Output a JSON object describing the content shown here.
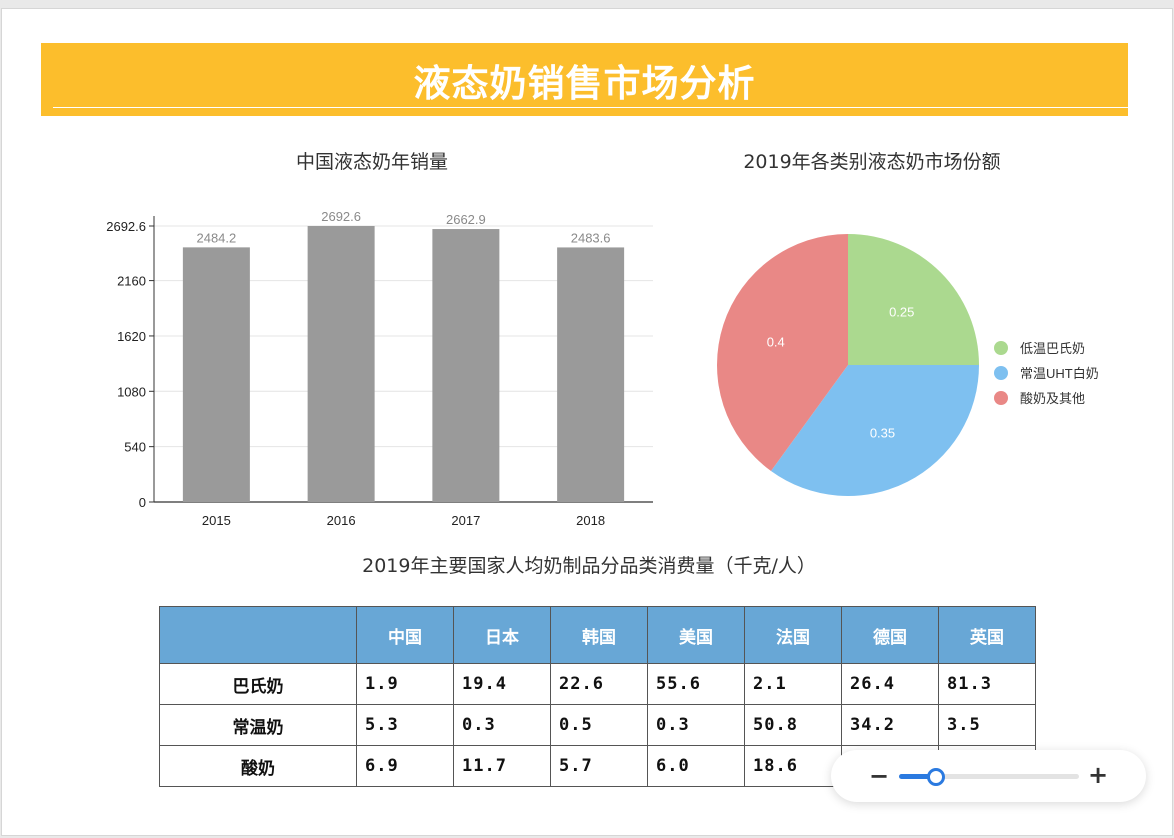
{
  "page": {
    "title": "液态奶销售市场分析"
  },
  "bar_chart_title": "中国液态奶年销量",
  "pie_chart_title": "2019年各类别液态奶市场份额",
  "table_title": "2019年主要国家人均奶制品分品类消费量（千克/人）",
  "chart_data": [
    {
      "type": "bar",
      "title": "中国液态奶年销量",
      "categories": [
        "2015",
        "2016",
        "2017",
        "2018"
      ],
      "values": [
        2484.2,
        2692.6,
        2662.9,
        2483.6
      ],
      "value_labels": [
        "2484.2",
        "2692.6",
        "2662.9",
        "2483.6"
      ],
      "ylim": [
        0,
        2692.6
      ],
      "yticks": [
        "0",
        "540",
        "1080",
        "1620",
        "2160",
        "2692.6"
      ],
      "ytick_values": [
        0,
        540,
        1080,
        1620,
        2160,
        2692.6
      ],
      "bar_color": "#9a9a9a",
      "grid": true
    },
    {
      "type": "pie",
      "title": "2019年各类别液态奶市场份额",
      "labels": [
        "低温巴氏奶",
        "常温UHT白奶",
        "酸奶及其他"
      ],
      "values": [
        0.25,
        0.35,
        0.4
      ],
      "value_labels": [
        "0.25",
        "0.35",
        "0.4"
      ],
      "colors": [
        "#abd98f",
        "#7ec0f0",
        "#e98886"
      ],
      "legend_position": "right"
    },
    {
      "type": "table",
      "title": "2019年主要国家人均奶制品分品类消费量（千克/人）",
      "columns": [
        "",
        "中国",
        "日本",
        "韩国",
        "美国",
        "法国",
        "德国",
        "英国"
      ],
      "rows": [
        [
          "巴氏奶",
          "1.9",
          "19.4",
          "22.6",
          "55.6",
          "2.1",
          "26.4",
          "81.3"
        ],
        [
          "常温奶",
          "5.3",
          "0.3",
          "0.5",
          "0.3",
          "50.8",
          "34.2",
          "3.5"
        ],
        [
          "酸奶",
          "6.9",
          "11.7",
          "5.7",
          "6.0",
          "18.6",
          "",
          ""
        ]
      ],
      "header_color": "#68a7d6"
    }
  ],
  "zoom": {
    "minus_label": "−",
    "plus_label": "+",
    "level": 0.2,
    "accent": "#2b7ae0"
  },
  "colors": {
    "banner": "#fcbe2c"
  }
}
